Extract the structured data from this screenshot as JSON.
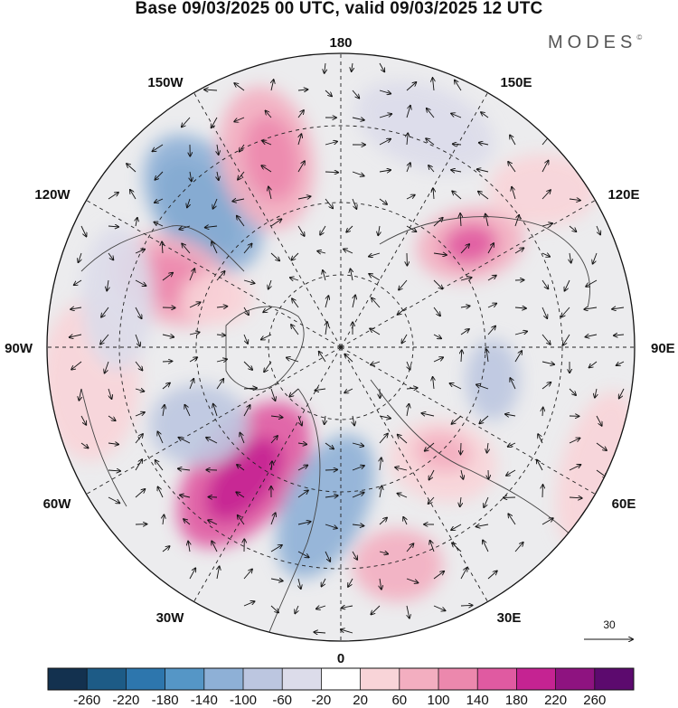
{
  "title": "Base 09/03/2025 00 UTC, valid 09/03/2025 12 UTC",
  "brand": "MODES",
  "brand_mark": "©",
  "longitude_labels": [
    "180",
    "150E",
    "120E",
    "90E",
    "60E",
    "30E",
    "0",
    "30W",
    "60W",
    "90W",
    "120W",
    "150W"
  ],
  "vector_scale": {
    "value": "30"
  },
  "colorbar": {
    "ticks": [
      "-260",
      "-220",
      "-180",
      "-140",
      "-100",
      "-60",
      "-20",
      "20",
      "60",
      "100",
      "140",
      "180",
      "220",
      "260"
    ],
    "colors": [
      "#13314f",
      "#1d5b86",
      "#2d76ad",
      "#5596c6",
      "#8eb0d6",
      "#bcc6e0",
      "#dcdcea",
      "#ffffff",
      "#f8d4d8",
      "#f3aec0",
      "#ec88ad",
      "#e05aa1",
      "#c52392",
      "#8e1380",
      "#5c0a6e"
    ]
  },
  "projection": "polar-stereographic-north",
  "field": "height-anomaly-shaded-with-wind-vectors"
}
